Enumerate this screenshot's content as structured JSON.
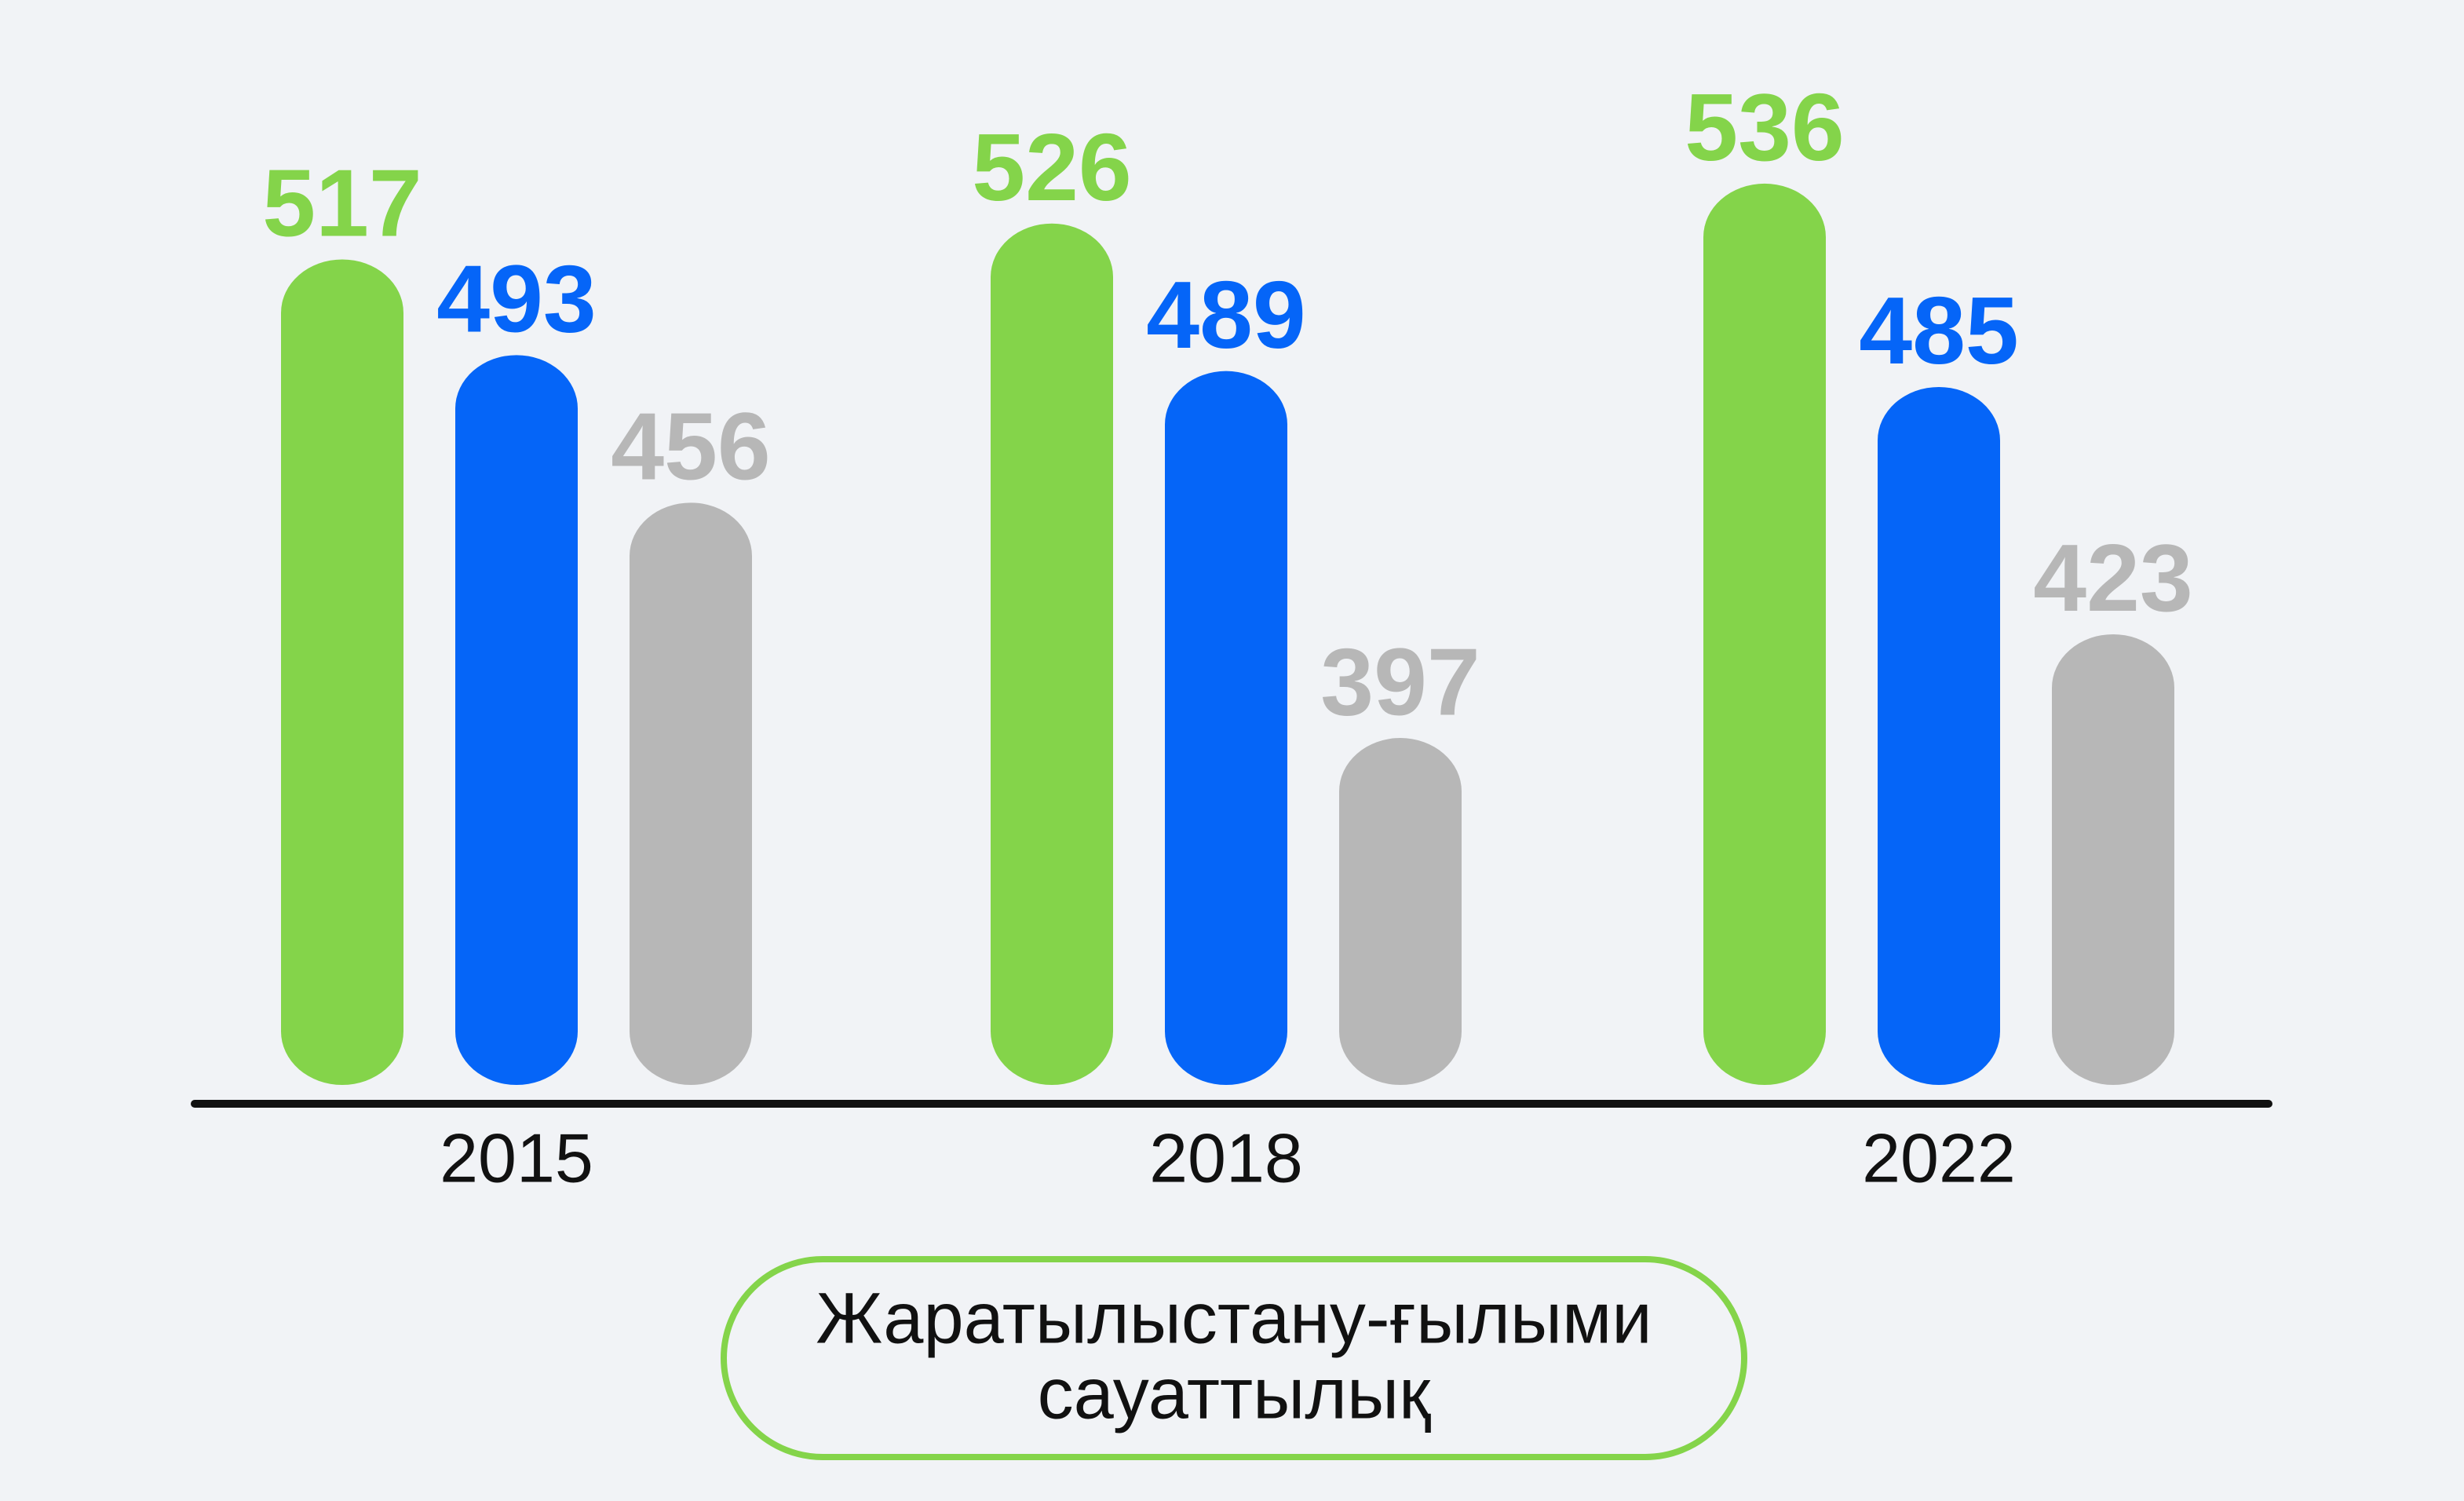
{
  "chart_data": {
    "type": "bar",
    "categories": [
      "2015",
      "2018",
      "2022"
    ],
    "series": [
      {
        "color": "#84d44a",
        "values": [
          517,
          526,
          536
        ]
      },
      {
        "color": "#0565f8",
        "values": [
          493,
          489,
          485
        ]
      },
      {
        "color": "#b7b7b7",
        "values": [
          456,
          397,
          423
        ]
      }
    ],
    "ylim": [
      310,
      560
    ],
    "caption_lines": [
      "Жаратылыстану-ғылыми",
      "сауаттылық"
    ]
  }
}
